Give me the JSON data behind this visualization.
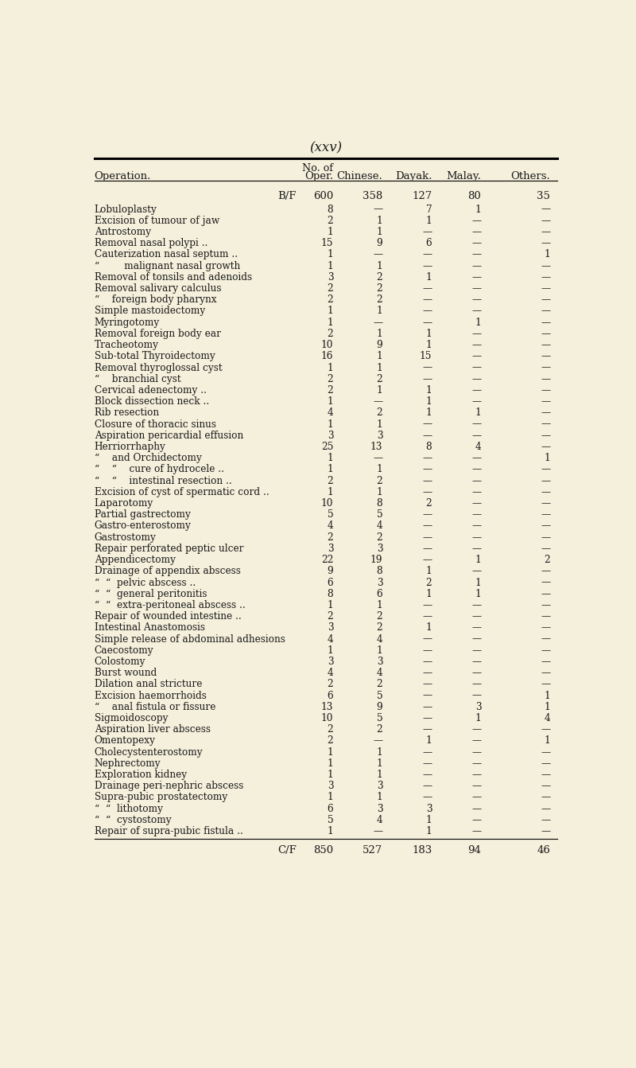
{
  "title": "(xxv)",
  "background_color": "#f5f0dc",
  "col_headers": [
    "Operation.",
    "Oper.",
    "Chinese.",
    "Dayak.",
    "Malay.",
    "Others."
  ],
  "bf_row": [
    "B/F",
    "600",
    "358",
    "127",
    "80",
    "35"
  ],
  "cf_row": [
    "C/F",
    "850",
    "527",
    "183",
    "94",
    "46"
  ],
  "rows": [
    [
      "Lobuloplasty",
      "8",
      "—",
      "7",
      "1",
      "—"
    ],
    [
      "Excision of tumour of jaw",
      "2",
      "1",
      "1",
      "—",
      "—"
    ],
    [
      "Antrostomy",
      "1",
      "1",
      "—",
      "—",
      "—"
    ],
    [
      "Removal nasal polypi ..",
      "15",
      "9",
      "6",
      "—",
      "—"
    ],
    [
      "Cauterization nasal septum ..",
      "1",
      "—",
      "—",
      "—",
      "1"
    ],
    [
      "“        malignant nasal growth",
      "1",
      "1",
      "—",
      "—",
      "—"
    ],
    [
      "Removal of tonsils and adenoids",
      "3",
      "2",
      "1",
      "—",
      "—"
    ],
    [
      "Removal salivary calculus",
      "2",
      "2",
      "—",
      "—",
      "—"
    ],
    [
      "“    foreign body pharynx",
      "2",
      "2",
      "—",
      "—",
      "—"
    ],
    [
      "Simple mastoidectomy",
      "1",
      "1",
      "—",
      "—",
      "—"
    ],
    [
      "Myringotomy",
      "1",
      "—",
      "—",
      "1",
      "—"
    ],
    [
      "Removal foreign body ear",
      "2",
      "1",
      "1",
      "—",
      "—"
    ],
    [
      "Tracheotomy",
      "10",
      "9",
      "1",
      "—",
      "—"
    ],
    [
      "Sub-total Thyroidectomy",
      "16",
      "1",
      "15",
      "—",
      "—"
    ],
    [
      "Removal thyroglossal cyst",
      "1",
      "1",
      "—",
      "—",
      "—"
    ],
    [
      "“    branchial cyst",
      "2",
      "2",
      "—",
      "—",
      "—"
    ],
    [
      "Cervical adenectomy ..",
      "2",
      "1",
      "1",
      "—",
      "—"
    ],
    [
      "Block dissection neck ..",
      "1",
      "—",
      "1",
      "—",
      "—"
    ],
    [
      "Rib resection",
      "4",
      "2",
      "1",
      "1",
      "—"
    ],
    [
      "Closure of thoracic sinus",
      "1",
      "1",
      "—",
      "—",
      "—"
    ],
    [
      "Aspiration pericardial effusion",
      "3",
      "3",
      "—",
      "—",
      "—"
    ],
    [
      "Herriorrhaphy",
      "25",
      "13",
      "8",
      "4",
      "—"
    ],
    [
      "“    and Orchidectomy",
      "1",
      "—",
      "—",
      "—",
      "1"
    ],
    [
      "“    “    cure of hydrocele ..",
      "1",
      "1",
      "—",
      "—",
      "—"
    ],
    [
      "“    “    intestinal resection ..",
      "2",
      "2",
      "—",
      "—",
      "—"
    ],
    [
      "Excision of cyst of spermatic cord ..",
      "1",
      "1",
      "—",
      "—",
      "—"
    ],
    [
      "Laparotomy",
      "10",
      "8",
      "2",
      "—",
      "—"
    ],
    [
      "Partial gastrectomy",
      "5",
      "5",
      "—",
      "—",
      "—"
    ],
    [
      "Gastro-enterostomy",
      "4",
      "4",
      "—",
      "—",
      "—"
    ],
    [
      "Gastrostomy",
      "2",
      "2",
      "—",
      "—",
      "—"
    ],
    [
      "Repair perforated peptic ulcer",
      "3",
      "3",
      "—",
      "—",
      "—"
    ],
    [
      "Appendicectomy",
      "22",
      "19",
      "—",
      "1",
      "2"
    ],
    [
      "Drainage of appendix abscess",
      "9",
      "8",
      "1",
      "—",
      "—"
    ],
    [
      "“  “  pelvic abscess ..",
      "6",
      "3",
      "2",
      "1",
      "—"
    ],
    [
      "“  “  general peritonitis",
      "8",
      "6",
      "1",
      "1",
      "—"
    ],
    [
      "“  “  extra-peritoneal abscess ..",
      "1",
      "1",
      "—",
      "—",
      "—"
    ],
    [
      "Repair of wounded intestine ..",
      "2",
      "2",
      "—",
      "—",
      "—"
    ],
    [
      "Intestinal Anastomosis",
      "3",
      "2",
      "1",
      "—",
      "—"
    ],
    [
      "Simple release of abdominal adhesions",
      "4",
      "4",
      "—",
      "—",
      "—"
    ],
    [
      "Caecostomy",
      "1",
      "1",
      "—",
      "—",
      "—"
    ],
    [
      "Colostomy",
      "3",
      "3",
      "—",
      "—",
      "—"
    ],
    [
      "Burst wound",
      "4",
      "4",
      "—",
      "—",
      "—"
    ],
    [
      "Dilation anal stricture",
      "2",
      "2",
      "—",
      "—",
      "—"
    ],
    [
      "Excision haemorrhoids",
      "6",
      "5",
      "—",
      "—",
      "1"
    ],
    [
      "“    anal fistula or fissure",
      "13",
      "9",
      "—",
      "3",
      "1"
    ],
    [
      "Sigmoidoscopy",
      "10",
      "5",
      "—",
      "1",
      "4"
    ],
    [
      "Aspiration liver abscess",
      "2",
      "2",
      "—",
      "—",
      "—"
    ],
    [
      "Omentopexy",
      "2",
      "—",
      "1",
      "—",
      "1"
    ],
    [
      "Cholecystenterostomy",
      "1",
      "1",
      "—",
      "—",
      "—"
    ],
    [
      "Nephrectomy",
      "1",
      "1",
      "—",
      "—",
      "—"
    ],
    [
      "Exploration kidney",
      "1",
      "1",
      "—",
      "—",
      "—"
    ],
    [
      "Drainage peri-nephric abscess",
      "3",
      "3",
      "—",
      "—",
      "—"
    ],
    [
      "Supra-pubic prostatectomy",
      "1",
      "1",
      "—",
      "—",
      "—"
    ],
    [
      "“  “  lithotomy",
      "6",
      "3",
      "3",
      "—",
      "—"
    ],
    [
      "“  “  cystostomy",
      "5",
      "4",
      "1",
      "—",
      "—"
    ],
    [
      "Repair of supra-pubic fistula ..",
      "1",
      "—",
      "1",
      "—",
      "—"
    ]
  ]
}
